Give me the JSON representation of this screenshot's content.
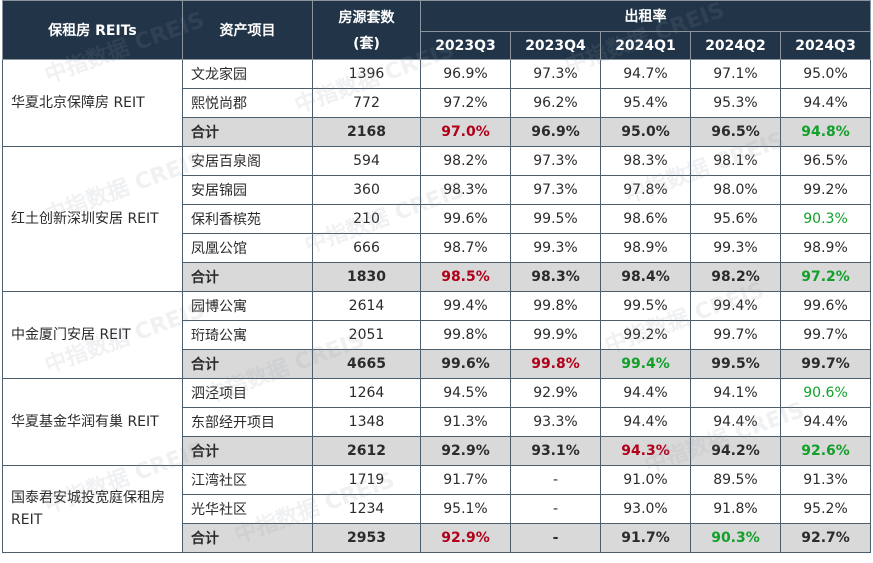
{
  "header": {
    "col_reit": "保租房 REITs",
    "col_asset": "资产项目",
    "col_units_line1": "房源套数",
    "col_units_line2": "(套)",
    "col_occupancy": "出租率",
    "quarters": [
      "2023Q3",
      "2023Q4",
      "2024Q1",
      "2024Q2",
      "2024Q3"
    ]
  },
  "groups": [
    {
      "name": "华夏北京保障房 REIT",
      "rows": [
        {
          "asset": "文龙家园",
          "units": "1396",
          "vals": [
            "96.9%",
            "97.3%",
            "94.7%",
            "97.1%",
            "95.0%"
          ],
          "colors": [
            "",
            "",
            "",
            "",
            ""
          ]
        },
        {
          "asset": "熙悦尚郡",
          "units": "772",
          "vals": [
            "97.2%",
            "96.2%",
            "95.4%",
            "95.3%",
            "94.4%"
          ],
          "colors": [
            "",
            "",
            "",
            "",
            ""
          ]
        },
        {
          "asset": "合计",
          "units": "2168",
          "vals": [
            "97.0%",
            "96.9%",
            "95.0%",
            "96.5%",
            "94.8%"
          ],
          "colors": [
            "red",
            "",
            "",
            "",
            "green"
          ],
          "total": true
        }
      ]
    },
    {
      "name": "红土创新深圳安居 REIT",
      "rows": [
        {
          "asset": "安居百泉阁",
          "units": "594",
          "vals": [
            "98.2%",
            "97.3%",
            "98.3%",
            "98.1%",
            "96.5%"
          ],
          "colors": [
            "",
            "",
            "",
            "",
            ""
          ]
        },
        {
          "asset": "安居锦园",
          "units": "360",
          "vals": [
            "98.3%",
            "97.3%",
            "97.8%",
            "98.0%",
            "99.2%"
          ],
          "colors": [
            "",
            "",
            "",
            "",
            ""
          ]
        },
        {
          "asset": "保利香槟苑",
          "units": "210",
          "vals": [
            "99.6%",
            "99.5%",
            "98.6%",
            "95.6%",
            "90.3%"
          ],
          "colors": [
            "",
            "",
            "",
            "",
            "green"
          ]
        },
        {
          "asset": "凤凰公馆",
          "units": "666",
          "vals": [
            "98.7%",
            "99.3%",
            "98.9%",
            "99.3%",
            "98.9%"
          ],
          "colors": [
            "",
            "",
            "",
            "",
            ""
          ]
        },
        {
          "asset": "合计",
          "units": "1830",
          "vals": [
            "98.5%",
            "98.3%",
            "98.4%",
            "98.2%",
            "97.2%"
          ],
          "colors": [
            "red",
            "",
            "",
            "",
            "green"
          ],
          "total": true
        }
      ]
    },
    {
      "name": "中金厦门安居 REIT",
      "rows": [
        {
          "asset": "园博公寓",
          "units": "2614",
          "vals": [
            "99.4%",
            "99.8%",
            "99.5%",
            "99.4%",
            "99.6%"
          ],
          "colors": [
            "",
            "",
            "",
            "",
            ""
          ]
        },
        {
          "asset": "珩琦公寓",
          "units": "2051",
          "vals": [
            "99.8%",
            "99.9%",
            "99.2%",
            "99.7%",
            "99.7%"
          ],
          "colors": [
            "",
            "",
            "",
            "",
            ""
          ]
        },
        {
          "asset": "合计",
          "units": "4665",
          "vals": [
            "99.6%",
            "99.8%",
            "99.4%",
            "99.5%",
            "99.7%"
          ],
          "colors": [
            "",
            "red",
            "green",
            "",
            ""
          ],
          "total": true
        }
      ]
    },
    {
      "name": "华夏基金华润有巢 REIT",
      "rows": [
        {
          "asset": "泗泾项目",
          "units": "1264",
          "vals": [
            "94.5%",
            "92.9%",
            "94.4%",
            "94.1%",
            "90.6%"
          ],
          "colors": [
            "",
            "",
            "",
            "",
            "green"
          ]
        },
        {
          "asset": "东部经开项目",
          "units": "1348",
          "vals": [
            "91.3%",
            "93.3%",
            "94.4%",
            "94.4%",
            "94.4%"
          ],
          "colors": [
            "",
            "",
            "",
            "",
            ""
          ]
        },
        {
          "asset": "合计",
          "units": "2612",
          "vals": [
            "92.9%",
            "93.1%",
            "94.3%",
            "94.2%",
            "92.6%"
          ],
          "colors": [
            "",
            "",
            "red",
            "",
            "green"
          ],
          "total": true
        }
      ]
    },
    {
      "name": "国泰君安城投宽庭保租房 REIT",
      "rows": [
        {
          "asset": "江湾社区",
          "units": "1719",
          "vals": [
            "91.7%",
            "-",
            "91.0%",
            "89.5%",
            "91.3%"
          ],
          "colors": [
            "",
            "",
            "",
            "",
            ""
          ]
        },
        {
          "asset": "光华社区",
          "units": "1234",
          "vals": [
            "95.1%",
            "-",
            "93.0%",
            "91.8%",
            "95.2%"
          ],
          "colors": [
            "",
            "",
            "",
            "",
            ""
          ]
        },
        {
          "asset": "合计",
          "units": "2953",
          "vals": [
            "92.9%",
            "-",
            "91.7%",
            "90.3%",
            "92.7%"
          ],
          "colors": [
            "red",
            "",
            "",
            "green",
            ""
          ],
          "total": true
        }
      ]
    }
  ],
  "watermark": "中指数据 CREIS"
}
